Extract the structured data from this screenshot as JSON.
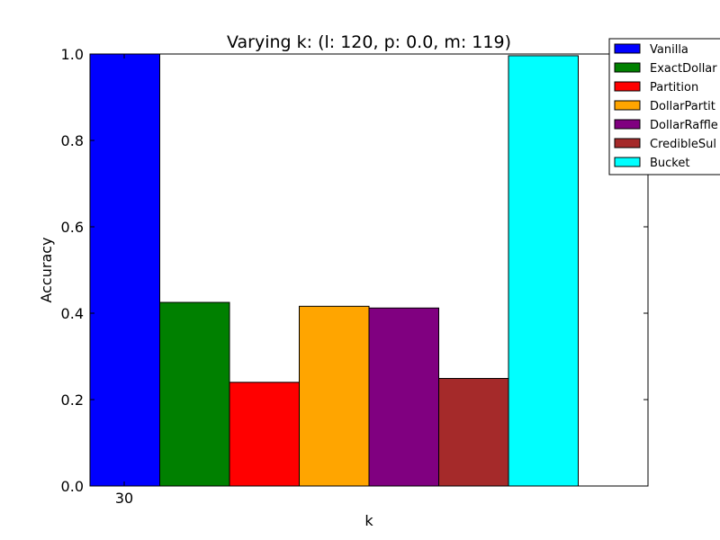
{
  "chart_data": {
    "type": "bar",
    "title": "Varying k: (l: 120, p: 0.0, m: 119)",
    "xlabel": "k",
    "ylabel": "Accuracy",
    "categories": [
      "30"
    ],
    "ylim": [
      0.0,
      1.0
    ],
    "yticks": [
      "0.0",
      "0.2",
      "0.4",
      "0.6",
      "0.8",
      "1.0"
    ],
    "grid": false,
    "legend_position": "top-right",
    "series": [
      {
        "name": "Vanilla",
        "color": "#0000ff",
        "values": [
          1.0
        ]
      },
      {
        "name": "ExactDollar",
        "color": "#008000",
        "values": [
          0.425
        ]
      },
      {
        "name": "Partition",
        "color": "#ff0000",
        "values": [
          0.24
        ]
      },
      {
        "name": "DollarPartit",
        "color": "#ffa500",
        "values": [
          0.416
        ]
      },
      {
        "name": "DollarRaffle",
        "color": "#800080",
        "values": [
          0.412
        ]
      },
      {
        "name": "CredibleSul",
        "color": "#a52a2a",
        "values": [
          0.249
        ]
      },
      {
        "name": "Bucket",
        "color": "#00ffff",
        "values": [
          0.996
        ]
      }
    ]
  }
}
